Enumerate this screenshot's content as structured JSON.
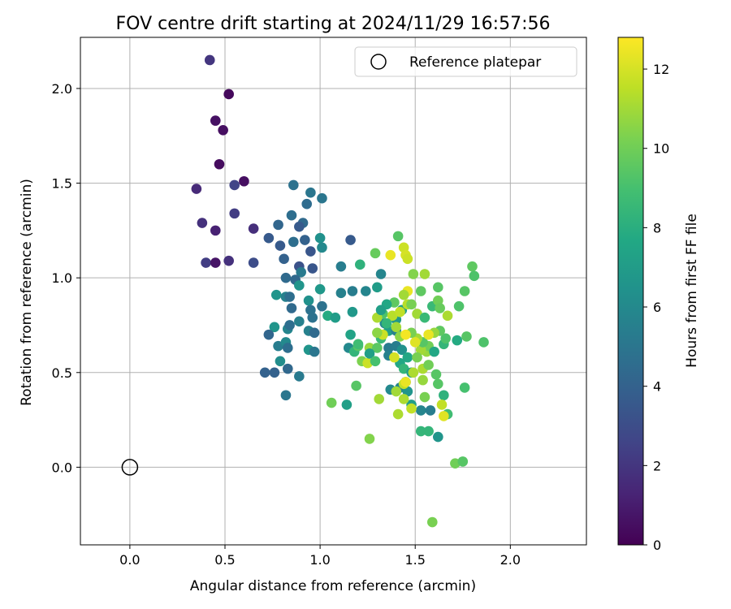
{
  "chart_data": {
    "type": "scatter",
    "title": "FOV centre drift starting at 2024/11/29 16:57:56",
    "xlabel": "Angular distance from reference (arcmin)",
    "ylabel": "Rotation from reference (arcmin)",
    "xlim": [
      -0.26,
      2.4
    ],
    "ylim": [
      -0.41,
      2.27
    ],
    "xticks": [
      "0.0",
      "0.5",
      "1.0",
      "1.5",
      "2.0"
    ],
    "xtick_values": [
      0.0,
      0.5,
      1.0,
      1.5,
      2.0
    ],
    "yticks": [
      "0.0",
      "0.5",
      "1.0",
      "1.5",
      "2.0"
    ],
    "ytick_values": [
      0.0,
      0.5,
      1.0,
      1.5,
      2.0
    ],
    "grid": true,
    "legend": {
      "placement": "top-right",
      "entries": [
        "Reference platepar"
      ]
    },
    "reference_point": {
      "x": 0.0,
      "y": 0.0
    },
    "colorbar": {
      "label": "Hours from first FF file",
      "colormap": "viridis",
      "range": [
        0,
        12.8
      ],
      "ticks": [
        "0",
        "2",
        "4",
        "6",
        "8",
        "10",
        "12"
      ],
      "tick_values": [
        0,
        2,
        4,
        6,
        8,
        10,
        12
      ]
    },
    "points": [
      [
        0.42,
        2.15,
        2.0
      ],
      [
        0.52,
        1.97,
        0.3
      ],
      [
        0.45,
        1.83,
        0.6
      ],
      [
        0.49,
        1.78,
        0.5
      ],
      [
        0.47,
        1.6,
        0.4
      ],
      [
        0.6,
        1.51,
        0.5
      ],
      [
        0.55,
        1.49,
        2.6
      ],
      [
        0.35,
        1.47,
        1.5
      ],
      [
        0.55,
        1.34,
        2.3
      ],
      [
        0.38,
        1.29,
        1.8
      ],
      [
        0.45,
        1.25,
        1.2
      ],
      [
        0.65,
        1.26,
        1.7
      ],
      [
        0.4,
        1.08,
        2.3
      ],
      [
        0.45,
        1.08,
        0.7
      ],
      [
        0.52,
        1.09,
        1.8
      ],
      [
        0.65,
        1.08,
        3.0
      ],
      [
        0.86,
        1.49,
        4.8
      ],
      [
        0.95,
        1.45,
        5.0
      ],
      [
        0.93,
        1.39,
        4.5
      ],
      [
        1.01,
        1.42,
        5.0
      ],
      [
        0.85,
        1.33,
        4.6
      ],
      [
        0.78,
        1.28,
        4.2
      ],
      [
        0.91,
        1.29,
        4.4
      ],
      [
        0.89,
        1.27,
        3.6
      ],
      [
        0.73,
        1.21,
        3.6
      ],
      [
        0.79,
        1.17,
        3.6
      ],
      [
        0.86,
        1.19,
        4.6
      ],
      [
        0.92,
        1.2,
        4.0
      ],
      [
        0.95,
        1.14,
        3.4
      ],
      [
        1.0,
        1.21,
        6.4
      ],
      [
        1.01,
        1.16,
        6.0
      ],
      [
        1.16,
        1.2,
        3.6
      ],
      [
        0.81,
        1.1,
        4.0
      ],
      [
        0.89,
        1.06,
        3.2
      ],
      [
        0.96,
        1.05,
        3.4
      ],
      [
        0.9,
        1.03,
        5.2
      ],
      [
        0.82,
        1.0,
        4.4
      ],
      [
        0.87,
        0.99,
        4.3
      ],
      [
        0.89,
        0.96,
        6.6
      ],
      [
        1.11,
        1.06,
        5.4
      ],
      [
        1.21,
        1.07,
        8.2
      ],
      [
        1.29,
        1.13,
        9.8
      ],
      [
        1.32,
        1.02,
        5.8
      ],
      [
        0.77,
        0.91,
        6.6
      ],
      [
        0.82,
        0.9,
        5.6
      ],
      [
        0.84,
        0.9,
        4.6
      ],
      [
        0.94,
        0.88,
        6.4
      ],
      [
        1.0,
        0.94,
        6.8
      ],
      [
        0.85,
        0.84,
        4.4
      ],
      [
        0.95,
        0.83,
        4.8
      ],
      [
        1.01,
        0.85,
        4.8
      ],
      [
        1.04,
        0.8,
        7.8
      ],
      [
        1.08,
        0.79,
        7.0
      ],
      [
        1.11,
        0.92,
        5.6
      ],
      [
        1.17,
        0.93,
        5.4
      ],
      [
        1.17,
        0.82,
        6.8
      ],
      [
        1.24,
        0.93,
        5.8
      ],
      [
        1.3,
        0.95,
        7.0
      ],
      [
        0.76,
        0.74,
        6.6
      ],
      [
        0.83,
        0.73,
        5.8
      ],
      [
        0.84,
        0.75,
        4.6
      ],
      [
        0.89,
        0.77,
        5.6
      ],
      [
        0.94,
        0.72,
        5.6
      ],
      [
        0.97,
        0.71,
        4.4
      ],
      [
        0.96,
        0.79,
        4.8
      ],
      [
        0.73,
        0.7,
        4.2
      ],
      [
        0.78,
        0.64,
        5.4
      ],
      [
        0.82,
        0.66,
        6.0
      ],
      [
        0.94,
        0.62,
        6.6
      ],
      [
        0.97,
        0.61,
        5.0
      ],
      [
        0.83,
        0.63,
        4.6
      ],
      [
        0.79,
        0.56,
        6.2
      ],
      [
        0.71,
        0.5,
        4.0
      ],
      [
        0.76,
        0.5,
        4.0
      ],
      [
        0.83,
        0.52,
        4.3
      ],
      [
        0.89,
        0.48,
        5.2
      ],
      [
        0.82,
        0.38,
        5.0
      ],
      [
        1.15,
        0.63,
        6.0
      ],
      [
        1.18,
        0.61,
        8.4
      ],
      [
        1.16,
        0.7,
        7.4
      ],
      [
        1.2,
        0.64,
        9.4
      ],
      [
        1.22,
        0.56,
        10.3
      ],
      [
        1.26,
        0.63,
        10.8
      ],
      [
        1.3,
        0.63,
        9.5
      ],
      [
        1.25,
        0.55,
        11.8
      ],
      [
        1.32,
        0.68,
        8.6
      ],
      [
        1.34,
        0.76,
        6.0
      ],
      [
        1.36,
        0.72,
        7.2
      ],
      [
        1.4,
        0.78,
        6.8
      ],
      [
        1.43,
        0.83,
        7.2
      ],
      [
        1.33,
        0.81,
        9.2
      ],
      [
        1.4,
        0.72,
        5.6
      ],
      [
        1.36,
        0.63,
        5.2
      ],
      [
        1.4,
        0.64,
        5.4
      ],
      [
        1.43,
        0.62,
        6.4
      ],
      [
        1.36,
        0.59,
        5.6
      ],
      [
        1.42,
        0.55,
        7.6
      ],
      [
        1.46,
        0.58,
        7.6
      ],
      [
        1.44,
        0.52,
        8.4
      ],
      [
        1.48,
        0.5,
        7.0
      ],
      [
        1.45,
        0.45,
        5.2
      ],
      [
        1.42,
        0.42,
        5.8
      ],
      [
        1.46,
        0.4,
        6.6
      ],
      [
        1.37,
        0.41,
        6.0
      ],
      [
        1.48,
        0.33,
        7.2
      ],
      [
        1.53,
        0.3,
        5.8
      ],
      [
        1.55,
        0.37,
        10.2
      ],
      [
        1.58,
        0.3,
        5.4
      ],
      [
        1.53,
        0.19,
        8.4
      ],
      [
        1.57,
        0.19,
        8.4
      ],
      [
        1.62,
        0.16,
        6.6
      ],
      [
        1.65,
        0.38,
        8.2
      ],
      [
        1.67,
        0.28,
        8.8
      ],
      [
        1.71,
        0.02,
        10.0
      ],
      [
        1.75,
        0.03,
        9.4
      ],
      [
        1.59,
        -0.29,
        10.2
      ],
      [
        1.26,
        0.15,
        10.4
      ],
      [
        1.06,
        0.34,
        10.0
      ],
      [
        1.14,
        0.33,
        7.2
      ],
      [
        1.19,
        0.43,
        9.4
      ],
      [
        1.31,
        0.36,
        11.0
      ],
      [
        1.41,
        0.28,
        11.2
      ],
      [
        1.44,
        0.36,
        11.2
      ],
      [
        1.48,
        0.31,
        11.6
      ],
      [
        1.44,
        0.44,
        11.6
      ],
      [
        1.45,
        0.45,
        12.4
      ],
      [
        1.49,
        0.5,
        11.2
      ],
      [
        1.54,
        0.46,
        10.8
      ],
      [
        1.54,
        0.52,
        11.2
      ],
      [
        1.57,
        0.54,
        10.0
      ],
      [
        1.61,
        0.49,
        9.4
      ],
      [
        1.62,
        0.44,
        9.4
      ],
      [
        1.64,
        0.33,
        11.6
      ],
      [
        1.65,
        0.27,
        12.2
      ],
      [
        1.56,
        0.61,
        10.8
      ],
      [
        1.57,
        0.64,
        10.0
      ],
      [
        1.53,
        0.62,
        11.0
      ],
      [
        1.51,
        0.58,
        10.2
      ],
      [
        1.54,
        0.66,
        9.4
      ],
      [
        1.6,
        0.61,
        7.6
      ],
      [
        1.65,
        0.65,
        8.4
      ],
      [
        1.66,
        0.68,
        9.2
      ],
      [
        1.72,
        0.67,
        7.8
      ],
      [
        1.77,
        0.69,
        9.4
      ],
      [
        1.63,
        0.72,
        9.6
      ],
      [
        1.6,
        0.71,
        10.8
      ],
      [
        1.57,
        0.7,
        12.4
      ],
      [
        1.51,
        0.68,
        11.0
      ],
      [
        1.48,
        0.71,
        10.2
      ],
      [
        1.42,
        0.69,
        10.6
      ],
      [
        1.4,
        0.74,
        11.0
      ],
      [
        1.33,
        0.7,
        11.8
      ],
      [
        1.3,
        0.71,
        10.6
      ],
      [
        1.2,
        0.65,
        8.8
      ],
      [
        1.3,
        0.79,
        11.2
      ],
      [
        1.38,
        0.8,
        11.4
      ],
      [
        1.42,
        0.82,
        11.6
      ],
      [
        1.46,
        0.86,
        11.4
      ],
      [
        1.48,
        0.86,
        10.2
      ],
      [
        1.51,
        0.81,
        11.0
      ],
      [
        1.55,
        0.79,
        8.6
      ],
      [
        1.59,
        0.85,
        8.6
      ],
      [
        1.62,
        0.88,
        10.0
      ],
      [
        1.67,
        0.8,
        11.2
      ],
      [
        1.73,
        0.85,
        9.2
      ],
      [
        1.76,
        0.93,
        9.4
      ],
      [
        1.8,
        1.06,
        9.6
      ],
      [
        1.81,
        1.01,
        9.2
      ],
      [
        1.86,
        0.66,
        9.2
      ],
      [
        1.62,
        0.95,
        9.4
      ],
      [
        1.53,
        0.93,
        9.6
      ],
      [
        1.46,
        0.93,
        12.4
      ],
      [
        1.44,
        0.91,
        11.0
      ],
      [
        1.49,
        1.02,
        10.4
      ],
      [
        1.55,
        1.02,
        11.0
      ],
      [
        1.41,
        1.22,
        9.4
      ],
      [
        1.44,
        1.16,
        11.8
      ],
      [
        1.45,
        1.12,
        12.0
      ],
      [
        1.46,
        1.1,
        11.8
      ],
      [
        1.39,
        0.87,
        9.6
      ],
      [
        1.35,
        0.86,
        7.6
      ],
      [
        1.32,
        0.83,
        7.2
      ],
      [
        1.37,
        1.12,
        12.4
      ],
      [
        1.76,
        0.42,
        9.0
      ],
      [
        1.63,
        0.84,
        9.8
      ],
      [
        1.26,
        0.6,
        7.2
      ],
      [
        1.29,
        0.56,
        9.0
      ],
      [
        1.39,
        0.58,
        12.0
      ],
      [
        1.45,
        0.7,
        12.6
      ],
      [
        1.5,
        0.66,
        12.2
      ],
      [
        1.4,
        0.4,
        11.0
      ],
      [
        1.35,
        0.76,
        8.4
      ]
    ]
  }
}
